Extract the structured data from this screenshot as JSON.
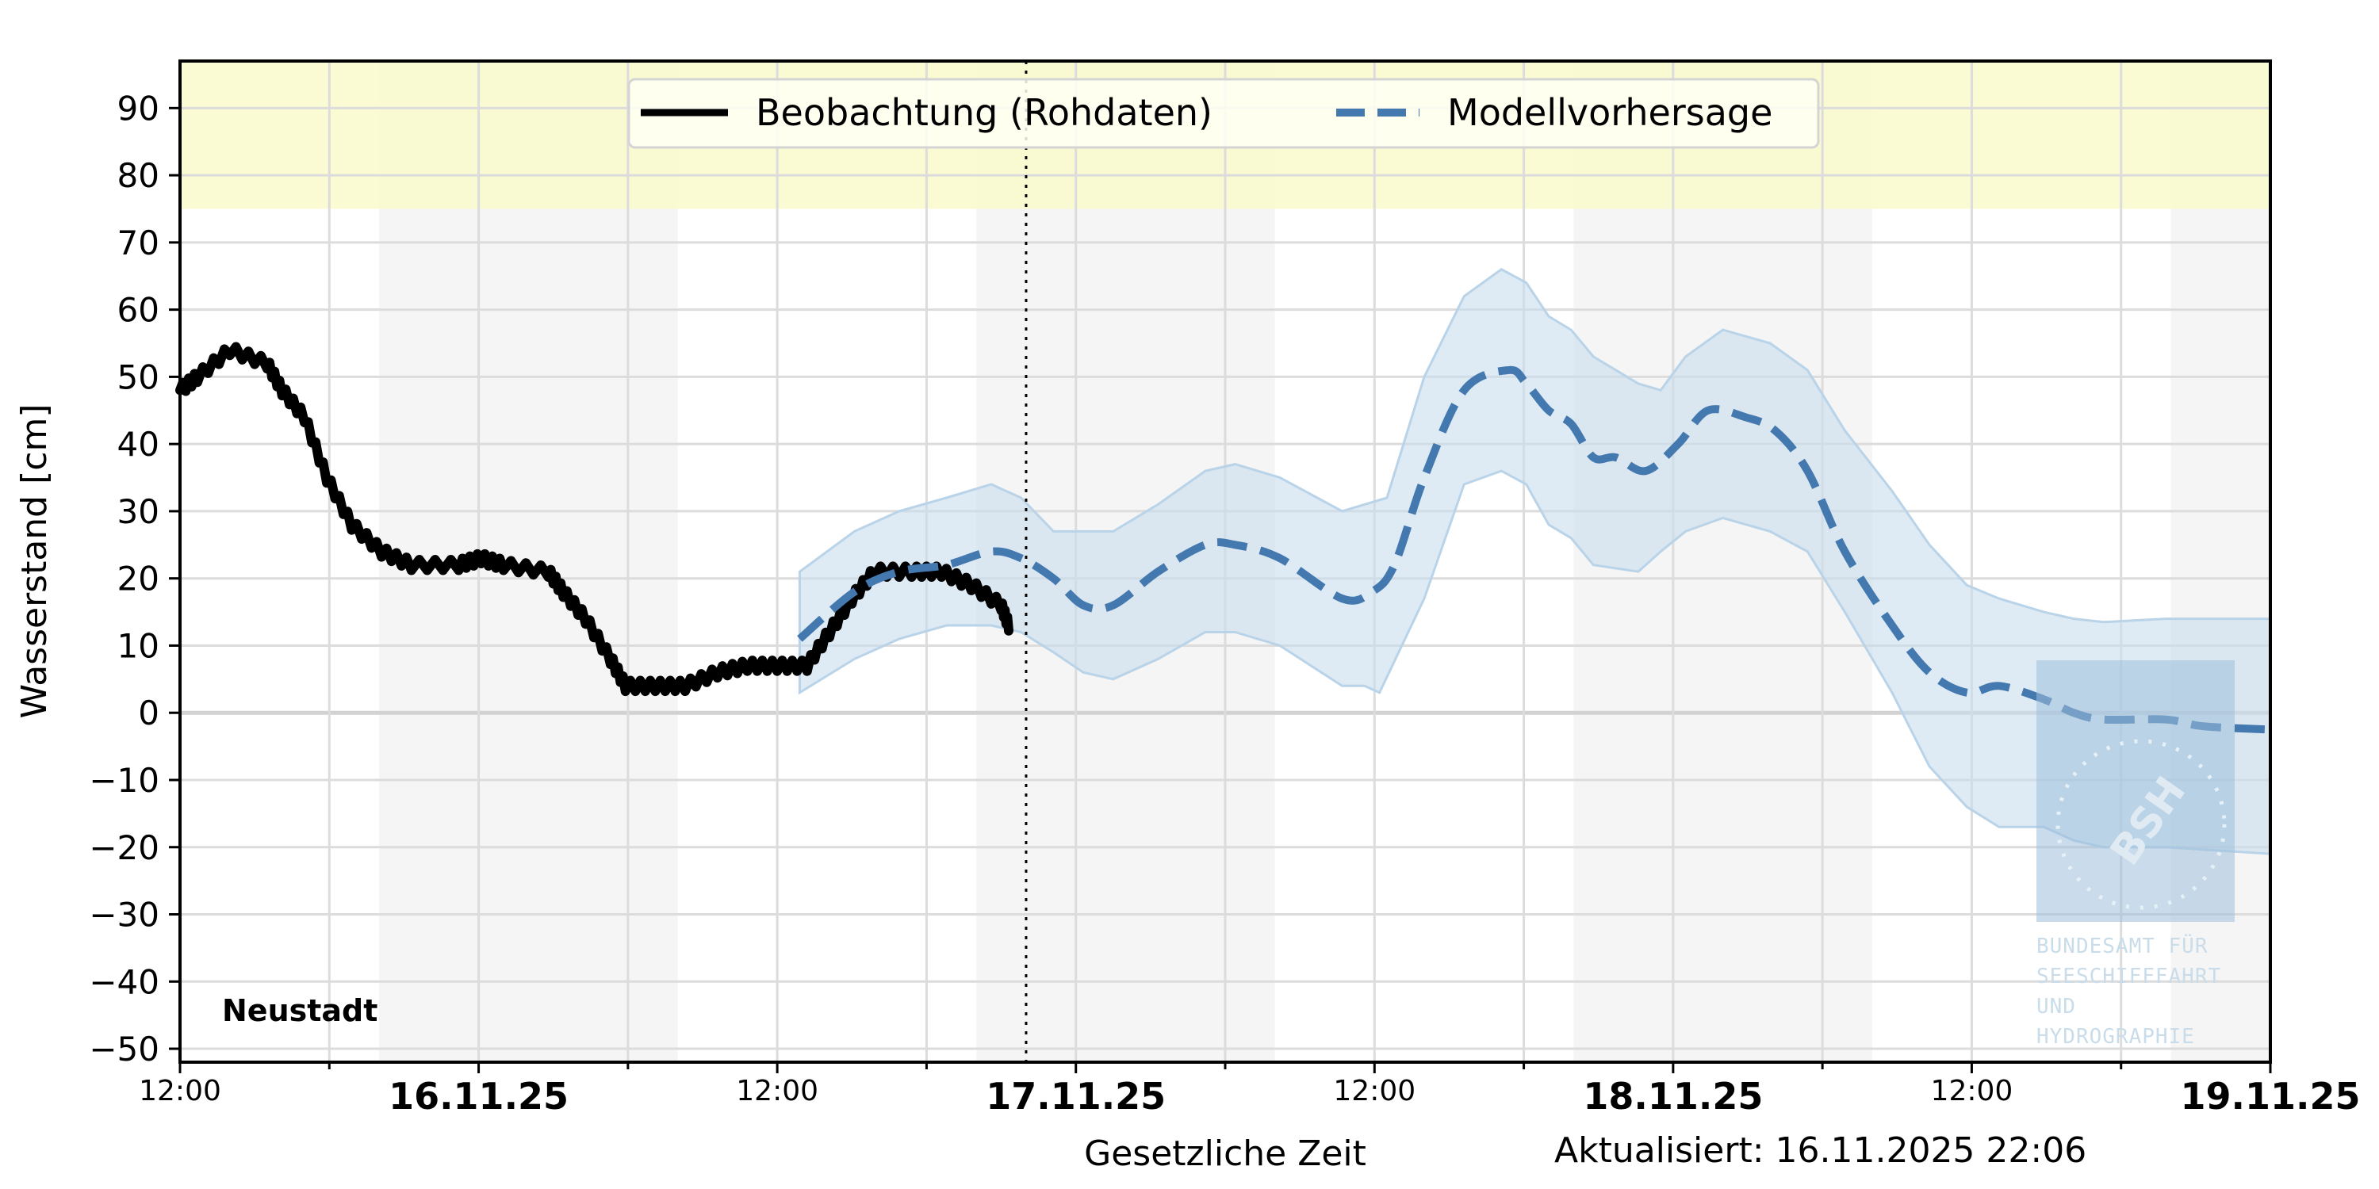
{
  "chart_data": {
    "type": "line",
    "title": "",
    "station": "Neustadt",
    "ylabel": "Wasserstand [cm]",
    "xlabel": "Gesetzliche Zeit",
    "updated": "Aktualisiert: 16.11.2025 22:06",
    "ylim": [
      -52,
      97
    ],
    "yticks": [
      90,
      80,
      70,
      60,
      50,
      40,
      30,
      20,
      10,
      0,
      -10,
      -20,
      -30,
      -40,
      -50
    ],
    "ytick_labels": [
      "90",
      "80",
      "70",
      "60",
      "50",
      "40",
      "30",
      "20",
      "10",
      "0",
      "−10",
      "−20",
      "−30",
      "−40",
      "−50"
    ],
    "xlim_hours_from_start": [
      0,
      84
    ],
    "x_start": "15.11.25 12:00",
    "xticks": [
      {
        "h": 0,
        "label": "12:00",
        "major": false
      },
      {
        "h": 12,
        "label": "16.11.25",
        "major": true
      },
      {
        "h": 24,
        "label": "12:00",
        "major": false
      },
      {
        "h": 36,
        "label": "17.11.25",
        "major": true
      },
      {
        "h": 48,
        "label": "12:00",
        "major": false
      },
      {
        "h": 60,
        "label": "18.11.25",
        "major": true
      },
      {
        "h": 72,
        "label": "12:00",
        "major": false
      },
      {
        "h": 84,
        "label": "19.11.25",
        "major": true
      }
    ],
    "now_marker_hours": 34,
    "warning_band": {
      "from": 75,
      "to": 97,
      "color": "#fafacb"
    },
    "night_bands_hours": [
      [
        8,
        20
      ],
      [
        32,
        44
      ],
      [
        56,
        68
      ],
      [
        80,
        84
      ]
    ],
    "legend": [
      {
        "label": "Beobachtung (Rohdaten)",
        "style": "solid",
        "color": "#000000"
      },
      {
        "label": "Modellvorhersage",
        "style": "dashed",
        "color": "#4479b0"
      }
    ],
    "series": [
      {
        "name": "Beobachtung (Rohdaten)",
        "color": "#000000",
        "x_hours": [
          0,
          0.7,
          2,
          3.5,
          4.1,
          5,
          5.9,
          6.9,
          8.1,
          9.3,
          11.2,
          12.1,
          13,
          14.8,
          15.4,
          16.3,
          17.3,
          17.9,
          19.1,
          20.3,
          21.6,
          22.8,
          24,
          25.2,
          26.1,
          27,
          27.9,
          29.4,
          30.6,
          31.8,
          33,
          33.3
        ],
        "values": [
          48,
          50,
          54,
          52,
          48,
          44,
          35,
          28,
          24,
          22,
          22,
          23,
          22,
          21,
          18,
          14,
          8,
          4,
          4,
          4,
          6,
          7,
          7,
          7,
          12,
          17,
          21,
          21,
          21,
          19,
          16,
          13
        ]
      },
      {
        "name": "Modellvorhersage",
        "color": "#4479b0",
        "x_hours": [
          24.9,
          27.1,
          28.9,
          30.8,
          32.6,
          33.8,
          35.1,
          36.3,
          37.5,
          39.3,
          41.2,
          42.4,
          44.2,
          46.7,
          47.9,
          48.8,
          50,
          51.6,
          53.4,
          54.1,
          55,
          55.9,
          56.8,
          57.7,
          58.9,
          60.2,
          61.4,
          62.9,
          64.1,
          65.4,
          66.9,
          68.8,
          70.3,
          71.8,
          73.1,
          74.9,
          76.1,
          77.3,
          79.8,
          81.3,
          84
        ],
        "values": [
          11,
          18,
          21,
          22,
          24,
          23,
          20,
          16,
          16,
          21,
          25,
          25,
          23,
          17,
          18,
          22,
          35,
          48,
          51,
          49,
          45,
          43,
          38,
          38,
          36,
          40,
          45,
          44,
          42,
          36,
          24,
          13,
          6,
          3,
          4,
          2,
          0,
          -1,
          -1,
          -2,
          -2.5
        ]
      },
      {
        "name": "Vorhersage obere Grenze",
        "color": "#b9d3e8",
        "x_hours": [
          24.9,
          27.1,
          28.9,
          30.8,
          32.6,
          33.8,
          35.1,
          36.3,
          37.5,
          39.3,
          41.2,
          42.4,
          44.2,
          46.7,
          47.6,
          48.5,
          50,
          51.6,
          53.1,
          54.1,
          55,
          55.9,
          56.8,
          58.6,
          59.5,
          60.5,
          62,
          63.9,
          65.4,
          66.9,
          68.8,
          70.3,
          71.8,
          73.1,
          74.9,
          76.1,
          77.3,
          79.8,
          84
        ],
        "values": [
          21,
          27,
          30,
          32,
          34,
          32,
          27,
          27,
          27,
          31,
          36,
          37,
          35,
          30,
          31,
          32,
          50,
          62,
          66,
          64,
          59,
          57,
          53,
          49,
          48,
          53,
          57,
          55,
          51,
          42,
          33,
          25,
          19,
          17,
          15,
          14,
          13.5,
          14,
          14
        ]
      },
      {
        "name": "Vorhersage untere Grenze",
        "color": "#b9d3e8",
        "x_hours": [
          24.9,
          27.1,
          28.9,
          30.8,
          32.6,
          33.8,
          35.1,
          36.3,
          37.5,
          39.3,
          41.2,
          42.4,
          44.2,
          46.7,
          47.6,
          48.2,
          50,
          51.6,
          53.1,
          54.1,
          55,
          55.9,
          56.8,
          58.6,
          59.5,
          60.5,
          62,
          63.9,
          65.4,
          66.9,
          68.8,
          70.3,
          71.8,
          73.1,
          74.9,
          76.1,
          77.3,
          79.8,
          84
        ],
        "values": [
          3,
          8,
          11,
          13,
          13,
          12,
          9,
          6,
          5,
          8,
          12,
          12,
          10,
          4,
          4,
          3,
          17,
          34,
          36,
          34,
          28,
          26,
          22,
          21,
          24,
          27,
          29,
          27,
          24,
          15,
          3,
          -8,
          -14,
          -17,
          -17,
          -19,
          -20,
          -20,
          -21
        ]
      }
    ],
    "grid": true,
    "legend_position": "upper center"
  },
  "watermark": {
    "logo_text": "BSH",
    "lines": [
      "BUNDESAMT FÜR",
      "SEESCHIFFFAHRT",
      "UND",
      "HYDROGRAPHIE"
    ]
  }
}
